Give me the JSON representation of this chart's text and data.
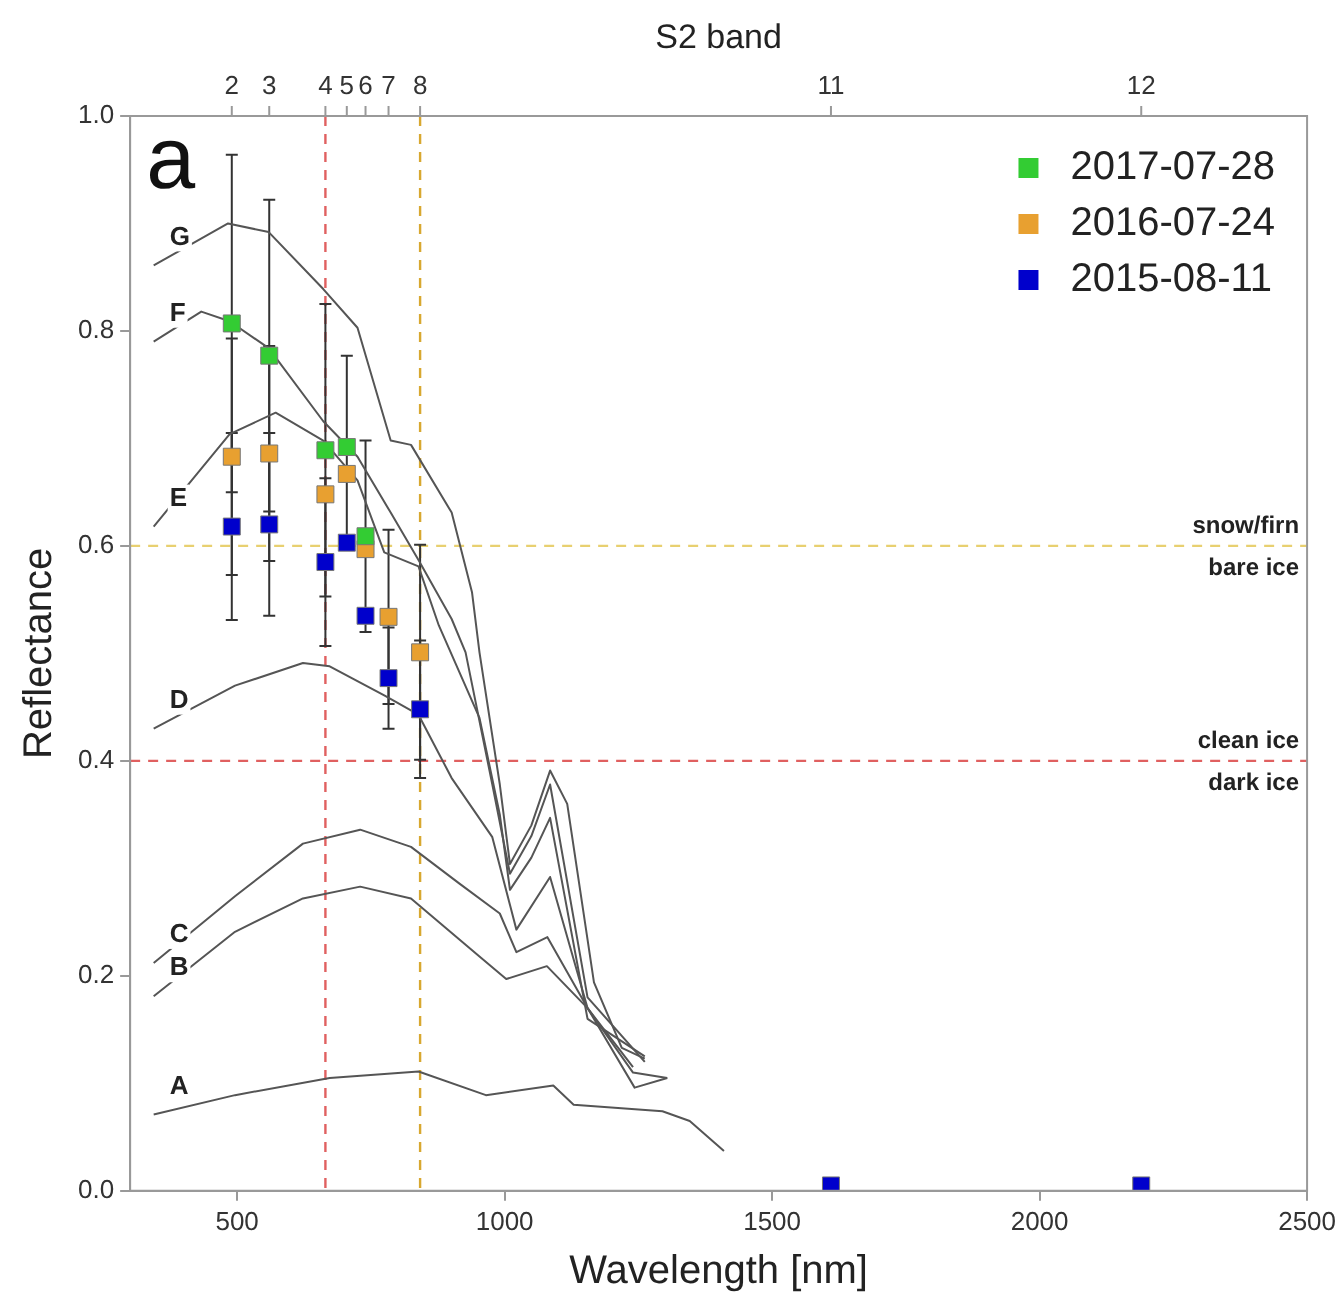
{
  "chart_data": {
    "type": "scatter",
    "xlabel": "Wavelength [nm]",
    "ylabel": "Reflectance",
    "x2label": "S2 band",
    "xlim": [
      300,
      2500
    ],
    "xticks": [
      500,
      1000,
      1500,
      2000,
      2500
    ],
    "ylim": [
      0,
      1
    ],
    "yticks": [
      {
        "value": 0,
        "label": "0.0"
      },
      {
        "value": 0.2,
        "label": "0.2"
      },
      {
        "value": 0.4,
        "label": "0.4"
      },
      {
        "value": 0.6,
        "label": "0.6"
      },
      {
        "value": 0.8,
        "label": "0.8"
      },
      {
        "value": 1,
        "label": "1.0"
      }
    ],
    "grid": false,
    "legend": "top right",
    "marker": "square",
    "series": [
      {
        "name": "G",
        "type": "line",
        "marker": "none",
        "color": "#555555",
        "x": [
          344,
          483,
          559,
          661,
          725,
          787,
          825,
          901,
          939,
          953,
          991,
          1010,
          1050,
          1085,
          1117,
          1167,
          1219,
          1262
        ],
        "values": [
          0.861,
          0.9,
          0.892,
          0.839,
          0.803,
          0.698,
          0.694,
          0.631,
          0.557,
          0.501,
          0.378,
          0.304,
          0.34,
          0.391,
          0.36,
          0.194,
          0.133,
          0.123
        ]
      },
      {
        "name": "F",
        "type": "line",
        "marker": "none",
        "color": "#555555",
        "x": [
          344,
          433,
          486,
          559,
          661,
          725,
          787,
          839,
          901,
          927,
          977,
          1010,
          1050,
          1085,
          1155,
          1262
        ],
        "values": [
          0.79,
          0.818,
          0.809,
          0.784,
          0.716,
          0.683,
          0.631,
          0.587,
          0.532,
          0.501,
          0.378,
          0.295,
          0.33,
          0.378,
          0.18,
          0.12
        ]
      },
      {
        "name": "E",
        "type": "line",
        "marker": "none",
        "color": "#555555",
        "x": [
          344,
          486,
          572,
          661,
          725,
          775,
          839,
          877,
          953,
          991,
          1010,
          1050,
          1085,
          1155,
          1262
        ],
        "values": [
          0.618,
          0.704,
          0.724,
          0.698,
          0.661,
          0.594,
          0.581,
          0.526,
          0.44,
          0.35,
          0.28,
          0.31,
          0.347,
          0.16,
          0.125
        ]
      },
      {
        "name": "D",
        "type": "line",
        "marker": "none",
        "color": "#555555",
        "x": [
          344,
          496,
          623,
          673,
          775,
          839,
          901,
          977,
          1022,
          1085,
          1155,
          1240
        ],
        "values": [
          0.43,
          0.47,
          0.491,
          0.488,
          0.461,
          0.443,
          0.384,
          0.329,
          0.243,
          0.292,
          0.17,
          0.115
        ]
      },
      {
        "name": "C",
        "type": "line",
        "marker": "none",
        "color": "#555555",
        "x": [
          344,
          496,
          623,
          730,
          825,
          915,
          991,
          1022,
          1080,
          1155,
          1240,
          1304
        ],
        "values": [
          0.212,
          0.274,
          0.323,
          0.336,
          0.32,
          0.286,
          0.258,
          0.222,
          0.236,
          0.17,
          0.11,
          0.105
        ]
      },
      {
        "name": "B",
        "type": "line",
        "marker": "none",
        "color": "#555555",
        "x": [
          344,
          496,
          623,
          730,
          825,
          953,
          1003,
          1079,
          1155,
          1243,
          1304
        ],
        "values": [
          0.181,
          0.241,
          0.272,
          0.283,
          0.272,
          0.218,
          0.197,
          0.209,
          0.17,
          0.096,
          0.105
        ]
      },
      {
        "name": "A",
        "type": "line",
        "marker": "none",
        "color": "#555555",
        "x": [
          344,
          496,
          673,
          839,
          965,
          1091,
          1129,
          1295,
          1346,
          1410
        ],
        "values": [
          0.071,
          0.089,
          0.105,
          0.111,
          0.089,
          0.098,
          0.08,
          0.074,
          0.065,
          0.037
        ]
      },
      {
        "name": "2017-07-28",
        "type": "scatter",
        "color": "#33cc33",
        "x": [
          490,
          560,
          665,
          705,
          740
        ],
        "values": [
          0.807,
          0.777,
          0.689,
          0.692,
          0.609
        ],
        "errors": [
          0.157,
          0.145,
          0.136,
          0.085,
          0.089
        ]
      },
      {
        "name": "2016-07-24",
        "type": "scatter",
        "color": "#e8a030",
        "x": [
          490,
          560,
          665,
          705,
          740,
          783,
          842
        ],
        "values": [
          0.683,
          0.686,
          0.648,
          0.667,
          0.597,
          0.534,
          0.501
        ],
        "errors": [
          0.11,
          0.1,
          null,
          null,
          null,
          0.081,
          0.1
        ]
      },
      {
        "name": "2015-08-11",
        "type": "scatter",
        "color": "#0000cc",
        "x": [
          490,
          560,
          665,
          705,
          740,
          783,
          842,
          1610,
          2190
        ],
        "values": [
          0.618,
          0.62,
          0.585,
          0.603,
          0.535,
          0.477,
          0.448,
          0.005,
          0.005
        ],
        "errors": [
          0.087,
          0.085,
          0.078,
          null,
          null,
          0.047,
          0.064,
          null,
          null
        ]
      }
    ],
    "ref_lines": [
      {
        "axis": "x",
        "value": 665,
        "label": null,
        "color": "#e06060",
        "line_style": "dashed"
      },
      {
        "axis": "x",
        "value": 842,
        "label": null,
        "color": "#d8a830",
        "line_style": "dashed"
      },
      {
        "axis": "y",
        "value": 0.6,
        "label": "snow/firn",
        "color": "#e8d070",
        "line_style": "dashed"
      },
      {
        "axis": "y",
        "value": 0.4,
        "label": "clean ice",
        "color": "#e06060",
        "line_style": "dashed"
      }
    ],
    "annotations": [
      "a",
      {
        "text": "bare ice",
        "x": 2500,
        "y": 0.6
      },
      {
        "text": "dark ice",
        "x": 2500,
        "y": 0.4
      },
      {
        "text": "2",
        "x": 490
      },
      {
        "text": "3",
        "x": 560
      },
      {
        "text": "4",
        "x": 665
      },
      {
        "text": "5",
        "x": 705
      },
      {
        "text": "6",
        "x": 740
      },
      {
        "text": "7",
        "x": 783
      },
      {
        "text": "8",
        "x": 842
      },
      {
        "text": "11",
        "x": 1610
      },
      {
        "text": "12",
        "x": 2190
      }
    ]
  }
}
